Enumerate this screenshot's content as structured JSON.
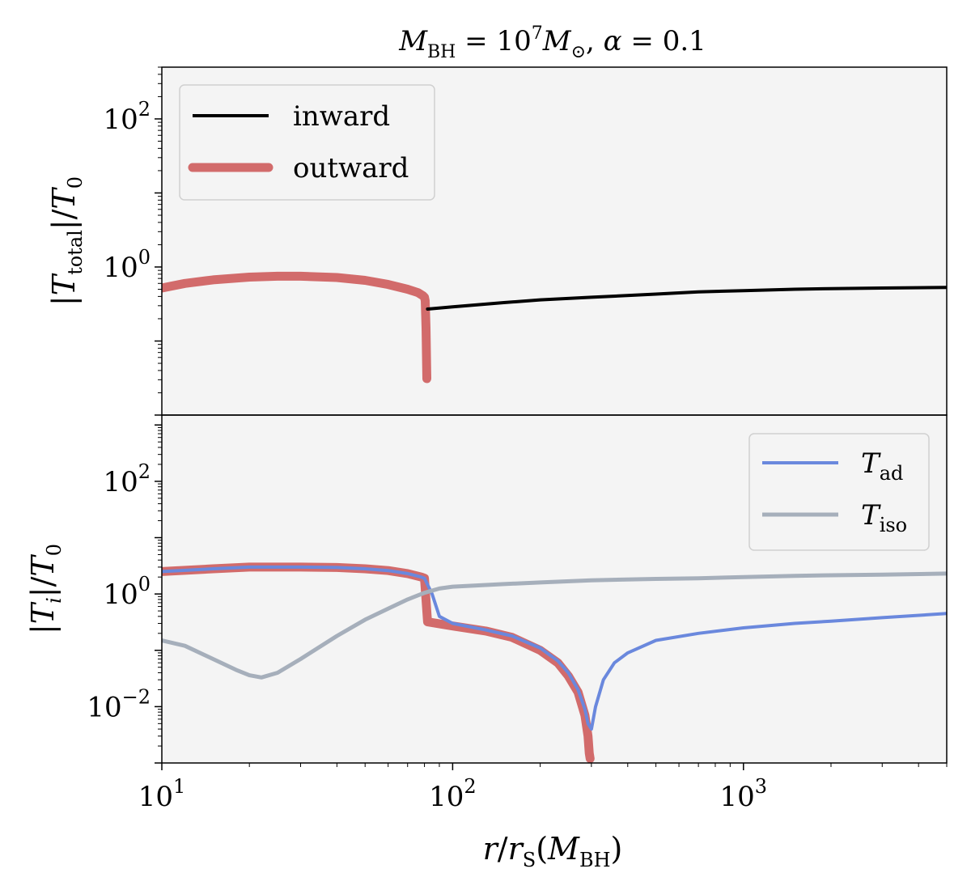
{
  "chart_data": {
    "type": "line",
    "title": "M_BH = 10^7 M_⊙, α = 0.1",
    "xlabel": "r/r_S(M_BH)",
    "xscale": "log",
    "xlim": [
      10,
      5000
    ],
    "x_ticks": [
      {
        "base": "10",
        "exp": "1",
        "value": 10
      },
      {
        "base": "10",
        "exp": "2",
        "value": 100
      },
      {
        "base": "10",
        "exp": "3",
        "value": 1000
      }
    ],
    "panels": [
      {
        "name": "top",
        "ylabel": "|T_total|/T_0",
        "yscale": "log",
        "ylim": [
          0.01,
          500
        ],
        "y_ticks": [
          {
            "base": "10",
            "exp": "2",
            "value": 100
          },
          {
            "base": "10",
            "exp": "0",
            "value": 1
          }
        ],
        "legend": {
          "position": "upper-left",
          "entries": [
            "inward",
            "outward"
          ]
        },
        "series": [
          {
            "name": "outward",
            "color": "#d26b6b",
            "x": [
              10,
              12,
              15,
              20,
              25,
              30,
              40,
              50,
              60,
              70,
              76,
              79,
              80,
              80.5,
              81,
              81.5
            ],
            "y": [
              0.52,
              0.6,
              0.67,
              0.73,
              0.75,
              0.75,
              0.72,
              0.66,
              0.58,
              0.5,
              0.45,
              0.41,
              0.39,
              0.35,
              0.15,
              0.031
            ]
          },
          {
            "name": "inward",
            "color": "#000000",
            "x": [
              82,
              100,
              150,
              200,
              300,
              500,
              700,
              1000,
              1500,
              2000,
              3000,
              5000
            ],
            "y": [
              0.27,
              0.29,
              0.33,
              0.36,
              0.39,
              0.43,
              0.46,
              0.48,
              0.5,
              0.51,
              0.52,
              0.53
            ]
          }
        ]
      },
      {
        "name": "bottom",
        "ylabel": "|T_i|/T_0",
        "yscale": "log",
        "ylim": [
          0.001,
          1500
        ],
        "y_ticks": [
          {
            "base": "10",
            "exp": "2",
            "value": 100
          },
          {
            "base": "10",
            "exp": "0",
            "value": 1
          },
          {
            "base": "10",
            "exp": "−2",
            "value": 0.01
          }
        ],
        "legend": {
          "position": "upper-right",
          "entries": [
            "T_ad",
            "T_iso"
          ]
        },
        "series": [
          {
            "name": "T_total",
            "color": "#d26b6b",
            "x": [
              10,
              15,
              20,
              30,
              40,
              50,
              60,
              70,
              78,
              80,
              82,
              100,
              130,
              160,
              200,
              230,
              250,
              270,
              285,
              292,
              295,
              297
            ],
            "y": [
              2.5,
              2.8,
              3.0,
              3.0,
              2.95,
              2.8,
              2.6,
              2.3,
              2.0,
              1.9,
              0.32,
              0.27,
              0.22,
              0.17,
              0.1,
              0.06,
              0.035,
              0.018,
              0.007,
              0.003,
              0.0015,
              0.0012
            ]
          },
          {
            "name": "T_ad",
            "color": "#6a88dd",
            "x": [
              10,
              15,
              20,
              30,
              40,
              50,
              60,
              70,
              78,
              80,
              85,
              90,
              100,
              130,
              160,
              200,
              230,
              250,
              270,
              285,
              292,
              300,
              310,
              330,
              360,
              400,
              500,
              700,
              1000,
              1500,
              2000,
              3000,
              5000
            ],
            "y": [
              2.5,
              2.8,
              3.0,
              3.0,
              2.95,
              2.8,
              2.6,
              2.3,
              2.0,
              1.9,
              1.0,
              0.4,
              0.3,
              0.23,
              0.18,
              0.11,
              0.065,
              0.04,
              0.02,
              0.009,
              0.005,
              0.004,
              0.01,
              0.03,
              0.06,
              0.09,
              0.15,
              0.2,
              0.25,
              0.3,
              0.33,
              0.38,
              0.45
            ]
          },
          {
            "name": "T_iso",
            "color": "#a6afbb",
            "x": [
              10,
              12,
              15,
              18,
              20,
              22,
              25,
              30,
              40,
              50,
              60,
              70,
              80,
              90,
              100,
              150,
              200,
              300,
              500,
              700,
              1000,
              1500,
              2000,
              3000,
              5000
            ],
            "y": [
              0.15,
              0.12,
              0.07,
              0.045,
              0.036,
              0.033,
              0.04,
              0.07,
              0.18,
              0.35,
              0.55,
              0.8,
              1.05,
              1.25,
              1.35,
              1.5,
              1.6,
              1.75,
              1.85,
              1.9,
              2.0,
              2.1,
              2.15,
              2.2,
              2.3
            ]
          }
        ]
      }
    ]
  }
}
